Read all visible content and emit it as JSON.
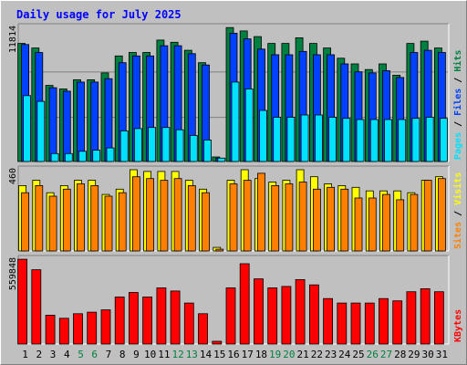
{
  "title": "Daily usage for July 2025",
  "colors": {
    "title": "#0000ff",
    "hits": "#008040",
    "files": "#0040ff",
    "pages": "#00e0ff",
    "visits": "#ffff00",
    "sites": "#ff8000",
    "kbytes": "#ff0000",
    "weekend_label": "#008040",
    "weekday_label": "#000000",
    "panel": "#c0c0c0",
    "gridline": "#808080"
  },
  "chart_data": [
    {
      "type": "bar",
      "panel": "hits-files-pages",
      "title": "Daily usage for July 2025",
      "ytick": "11814",
      "ylabel_parts": [
        "Pages",
        "Files",
        "Hits"
      ],
      "ylabel_separator": " / ",
      "ylim": [
        0,
        11814
      ],
      "categories": [
        "1",
        "2",
        "3",
        "4",
        "5",
        "6",
        "7",
        "8",
        "9",
        "10",
        "11",
        "12",
        "13",
        "14",
        "15",
        "16",
        "17",
        "18",
        "19",
        "20",
        "21",
        "22",
        "23",
        "24",
        "25",
        "26",
        "27",
        "28",
        "29",
        "30",
        "31"
      ],
      "series": [
        {
          "name": "Hits",
          "values": [
            10400,
            10000,
            6700,
            6400,
            7200,
            7200,
            7800,
            9300,
            9600,
            9600,
            10700,
            10500,
            9800,
            8700,
            400,
            11800,
            11500,
            11000,
            10400,
            10400,
            10900,
            10400,
            10000,
            9100,
            8600,
            8100,
            8600,
            7600,
            10400,
            10600,
            10000
          ]
        },
        {
          "name": "Files",
          "values": [
            10300,
            9600,
            6500,
            6200,
            7000,
            7000,
            7300,
            8700,
            9300,
            9300,
            10200,
            10200,
            9500,
            8500,
            300,
            11300,
            10800,
            9900,
            9400,
            9400,
            9700,
            9400,
            9400,
            8600,
            7900,
            7800,
            8000,
            7400,
            9600,
            9800,
            9600
          ]
        },
        {
          "name": "Pages",
          "values": [
            5800,
            5300,
            700,
            700,
            900,
            1000,
            1200,
            2700,
            2900,
            3000,
            3000,
            2800,
            2300,
            1900,
            300,
            7000,
            6400,
            4500,
            3900,
            3900,
            4100,
            4100,
            3900,
            3800,
            3700,
            3700,
            3700,
            3700,
            3800,
            3900,
            3800
          ]
        }
      ]
    },
    {
      "type": "bar",
      "panel": "visits-sites",
      "ytick": "460",
      "ylabel_parts": [
        "Sites",
        "Visits"
      ],
      "ylabel_separator": " / ",
      "ylim": [
        0,
        460
      ],
      "categories": [
        "1",
        "2",
        "3",
        "4",
        "5",
        "6",
        "7",
        "8",
        "9",
        "10",
        "11",
        "12",
        "13",
        "14",
        "15",
        "16",
        "17",
        "18",
        "19",
        "20",
        "21",
        "22",
        "23",
        "24",
        "25",
        "26",
        "27",
        "28",
        "29",
        "30",
        "31"
      ],
      "series": [
        {
          "name": "Visits",
          "values": [
            370,
            400,
            330,
            370,
            400,
            400,
            320,
            350,
            460,
            450,
            450,
            450,
            400,
            350,
            20,
            400,
            460,
            410,
            390,
            400,
            460,
            420,
            380,
            370,
            360,
            340,
            340,
            340,
            330,
            400,
            420
          ]
        },
        {
          "name": "Sites",
          "values": [
            330,
            370,
            310,
            350,
            380,
            370,
            310,
            330,
            420,
            410,
            400,
            410,
            370,
            330,
            10,
            380,
            400,
            440,
            370,
            380,
            390,
            350,
            360,
            350,
            300,
            300,
            320,
            290,
            320,
            400,
            410
          ]
        }
      ]
    },
    {
      "type": "bar",
      "panel": "kbytes",
      "ytick": "559848",
      "ylabel_parts": [
        "KBytes"
      ],
      "ylabel_separator": " / ",
      "ylim": [
        0,
        559848
      ],
      "categories": [
        "1",
        "2",
        "3",
        "4",
        "5",
        "6",
        "7",
        "8",
        "9",
        "10",
        "11",
        "12",
        "13",
        "14",
        "15",
        "16",
        "17",
        "18",
        "19",
        "20",
        "21",
        "22",
        "23",
        "24",
        "25",
        "26",
        "27",
        "28",
        "29",
        "30",
        "31"
      ],
      "series": [
        {
          "name": "KBytes",
          "values": [
            559000,
            490000,
            190000,
            170000,
            200000,
            210000,
            225000,
            310000,
            340000,
            310000,
            370000,
            350000,
            270000,
            200000,
            18000,
            370000,
            530000,
            430000,
            370000,
            380000,
            425000,
            390000,
            300000,
            270000,
            270000,
            270000,
            300000,
            285000,
            345000,
            365000,
            345000
          ]
        }
      ]
    }
  ]
}
